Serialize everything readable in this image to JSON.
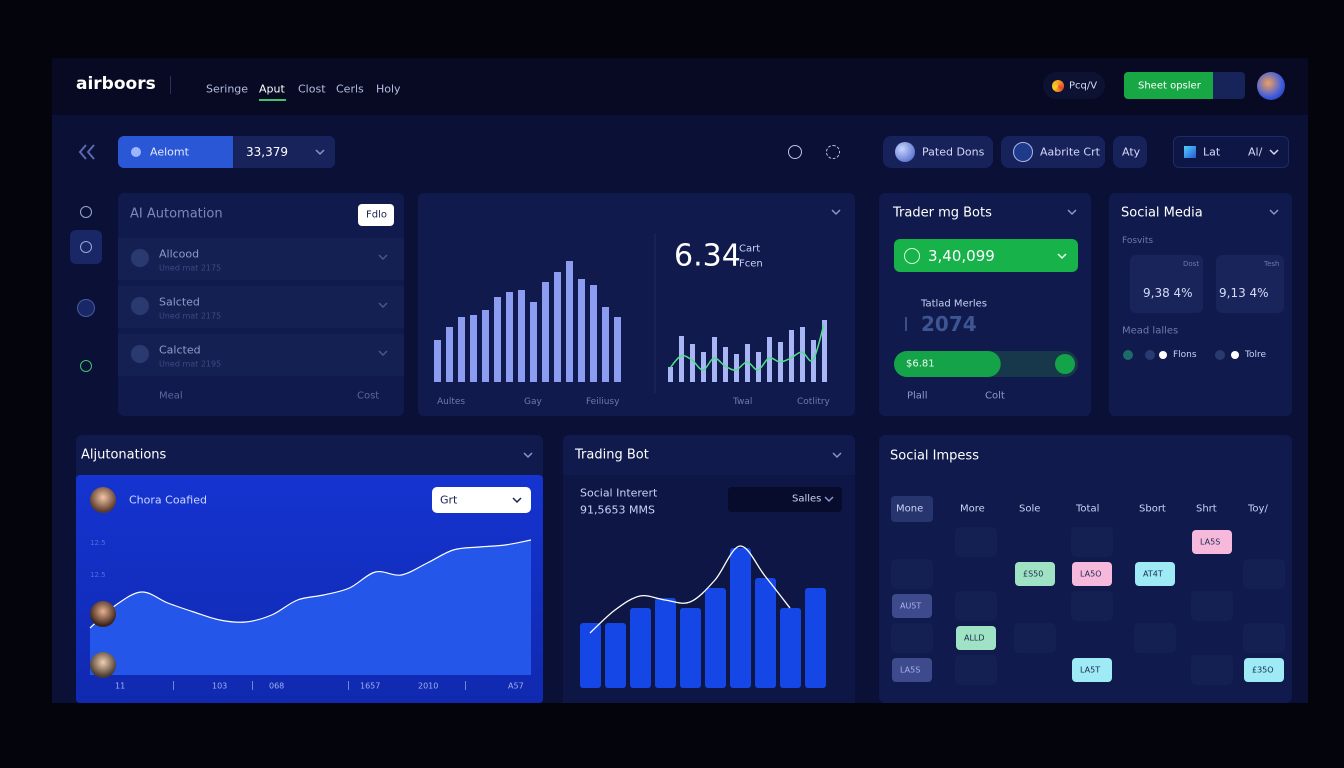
{
  "header": {
    "brand": "airboors",
    "nav": [
      "Seringe",
      "Aput",
      "Clost",
      "Cerls",
      "Holy"
    ],
    "badge": "Pcq/V",
    "button": "Sheet opsler"
  },
  "toolbar": {
    "select_label": "Aelomt",
    "select_value": "33,379",
    "pills": [
      "Pated Dons",
      "Aabrite Crt",
      "Aty"
    ],
    "view": "Lat",
    "view_value": "Al/"
  },
  "ai_automation": {
    "title": "AI Automation",
    "button": "Fdlo",
    "items": [
      {
        "name": "Allcood",
        "detail": "Uned mat 2175"
      },
      {
        "name": "Salcted",
        "detail": "Uned mat 2175"
      },
      {
        "name": "Calcted",
        "detail": "Uned mat 2195"
      }
    ],
    "footer_left": "Meal",
    "footer_right": "Cost"
  },
  "overview": {
    "value": "6.34",
    "unit_top": "Cart",
    "unit_bottom": "Fcen",
    "ylim": [
      0,
      130
    ],
    "bars": [
      42,
      55,
      65,
      67,
      72,
      85,
      90,
      92,
      80,
      100,
      110,
      121,
      103,
      97,
      75,
      65
    ],
    "bars_color": "#8c9cf0",
    "bars2": [
      15,
      46,
      38,
      30,
      45,
      35,
      28,
      38,
      30,
      45,
      40,
      52,
      55,
      42,
      62
    ],
    "bars2_color": "#a9b6f5",
    "line": [
      14,
      26,
      22,
      12,
      24,
      16,
      12,
      20,
      12,
      24,
      20,
      24,
      30,
      22,
      58
    ],
    "line_color": "#4fe08a",
    "labels": [
      "Aultes",
      "Gay",
      "Feiliusy",
      "Twal",
      "Cotlitry"
    ]
  },
  "trading_bots": {
    "title": "Trader mg Bots",
    "value": "3,40,099",
    "metric_label": "Tatlad Merles",
    "metric_value": "2074",
    "progress_label": "$6.81",
    "progress": 58,
    "progress_range": [
      0,
      100
    ],
    "footer": [
      "Plall",
      "Colt"
    ]
  },
  "social_media": {
    "title": "Social Media",
    "subtitle": "Fosvits",
    "stats": [
      {
        "label": "Dost",
        "value": "9,38 4%"
      },
      {
        "label": "Tesh",
        "value": "9,13 4%"
      }
    ],
    "legend_title": "Mead lalles",
    "legend": [
      "Flons",
      "Tolre"
    ]
  },
  "automations": {
    "title": "Aljutonations",
    "person": "Chora Coafied",
    "select": "Grt",
    "y_labels": [
      "12.5",
      "12.5"
    ],
    "x_labels": [
      "11",
      "103",
      "068",
      "1657",
      "2010",
      "A57"
    ],
    "ylim": [
      0,
      150
    ],
    "values": [
      47,
      70,
      83,
      72,
      63,
      55,
      53,
      60,
      75,
      80,
      87,
      103,
      100,
      112,
      125,
      128,
      130,
      135
    ],
    "color": "#2456ea"
  },
  "trading_bot": {
    "title": "Trading Bot",
    "label": "Social Interert",
    "value": "91,5653 MMS",
    "select": "Salles",
    "ylim": [
      0,
      150
    ],
    "bars": [
      65,
      65,
      80,
      90,
      80,
      100,
      140,
      110,
      80,
      100
    ],
    "bars_color": "#1447e6",
    "line": [
      55,
      78,
      92,
      88,
      86,
      108,
      142,
      112,
      80,
      null
    ],
    "line_color": "#ffffff"
  },
  "social_impess": {
    "title": "Social Impess",
    "columns": [
      "Mone",
      "More",
      "Sole",
      "Total",
      "Sbort",
      "Shrt",
      "Toy/"
    ],
    "rows": [
      [
        null,
        null,
        null,
        null,
        null,
        {
          "text": "LA5S",
          "color": "#f6b9dc"
        },
        null
      ],
      [
        null,
        null,
        {
          "text": "£S50",
          "color": "#9fe3c4"
        },
        {
          "text": "LA5O",
          "color": "#f6b9dc"
        },
        {
          "text": "AT4T",
          "color": "#9eeaf5"
        },
        null,
        null
      ],
      [
        {
          "text": "AU5T",
          "color": "#3d4a8c"
        },
        null,
        null,
        null,
        null,
        null,
        null
      ],
      [
        null,
        {
          "text": "ALLD",
          "color": "#9fe3c4"
        },
        null,
        null,
        null,
        null,
        null
      ],
      [
        {
          "text": "LA5S",
          "color": "#3d4a8c"
        },
        null,
        null,
        {
          "text": "LA5T",
          "color": "#9eeaf5"
        },
        null,
        null,
        {
          "text": "£35O",
          "color": "#9eeaf5"
        }
      ]
    ]
  }
}
